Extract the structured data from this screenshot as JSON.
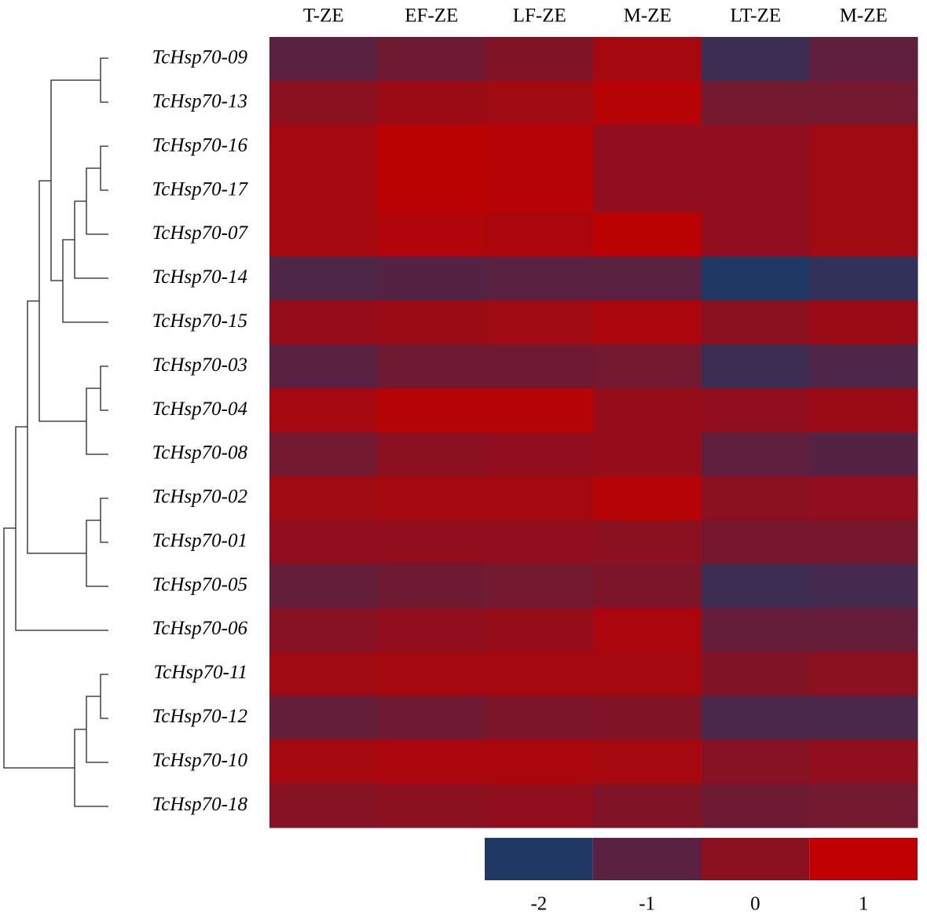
{
  "chart_data": {
    "type": "heatmap",
    "columns": [
      "T-ZE",
      "EF-ZE",
      "LF-ZE",
      "M-ZE",
      "LT-ZE",
      "M-ZE"
    ],
    "rows": [
      "TcHsp70-09",
      "TcHsp70-13",
      "TcHsp70-16",
      "TcHsp70-17",
      "TcHsp70-07",
      "TcHsp70-14",
      "TcHsp70-15",
      "TcHsp70-03",
      "TcHsp70-04",
      "TcHsp70-08",
      "TcHsp70-02",
      "TcHsp70-01",
      "TcHsp70-05",
      "TcHsp70-06",
      "TcHsp70-11",
      "TcHsp70-12",
      "TcHsp70-10",
      "TcHsp70-18"
    ],
    "values": [
      [
        -1,
        -0.6,
        -0.2,
        0.5,
        -1.5,
        -0.9
      ],
      [
        0,
        0.3,
        0.4,
        0.8,
        -0.5,
        -0.5
      ],
      [
        0.5,
        0.9,
        0.8,
        0.1,
        0.1,
        0.4
      ],
      [
        0.5,
        0.9,
        0.8,
        0.1,
        0.1,
        0.4
      ],
      [
        0.5,
        0.7,
        0.6,
        0.9,
        0.1,
        0.4
      ],
      [
        -1.2,
        -1.1,
        -1,
        -1,
        -2,
        -1.7
      ],
      [
        0.2,
        0.3,
        0.4,
        0.6,
        0,
        0.3
      ],
      [
        -1,
        -0.6,
        -0.6,
        -0.5,
        -1.5,
        -1.2
      ],
      [
        0.5,
        0.8,
        0.8,
        0.2,
        0.1,
        0.3
      ],
      [
        -0.5,
        0,
        0.1,
        0.2,
        -0.9,
        -1.1
      ],
      [
        0.4,
        0.5,
        0.5,
        0.8,
        0,
        0.1
      ],
      [
        0.1,
        0.1,
        0.1,
        0,
        -0.4,
        -0.4
      ],
      [
        -0.8,
        -0.6,
        -0.5,
        -0.3,
        -1.5,
        -1.4
      ],
      [
        -0.1,
        0.1,
        0.2,
        0.6,
        -0.8,
        -0.8
      ],
      [
        0.4,
        0.5,
        0.5,
        0.5,
        -0.2,
        0
      ],
      [
        -0.8,
        -0.6,
        -0.3,
        -0.2,
        -1.3,
        -1.3
      ],
      [
        0.5,
        0.6,
        0.6,
        0.5,
        -0.1,
        0.1
      ],
      [
        -0.1,
        0,
        0.1,
        -0.2,
        -0.6,
        -0.5
      ]
    ],
    "legend_ticks": [
      -2,
      -1,
      0,
      1
    ],
    "legend_colors": [
      "#203864",
      "#5a2140",
      "#8b1020",
      "#c00000"
    ]
  }
}
